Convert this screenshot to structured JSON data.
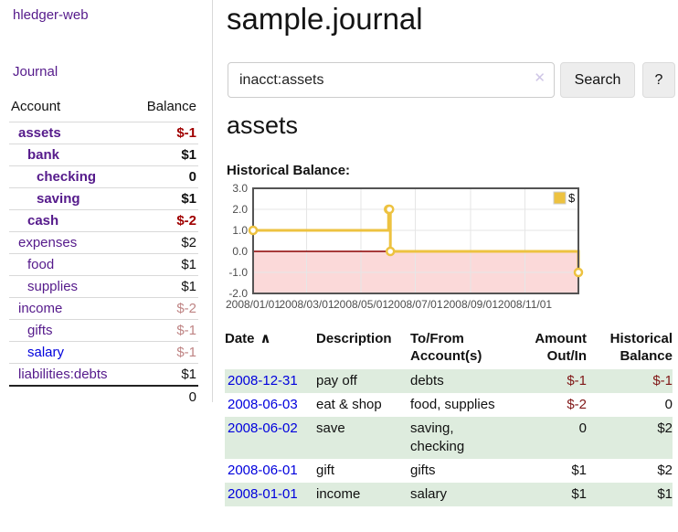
{
  "sidebar": {
    "brand": "hledger-web",
    "journal_label": "Journal",
    "accounts_table": {
      "headers": [
        "Account",
        "Balance"
      ],
      "rows": [
        {
          "account": "assets",
          "balance": "$-1"
        },
        {
          "account": "bank",
          "balance": "$1"
        },
        {
          "account": "checking",
          "balance": "0"
        },
        {
          "account": "saving",
          "balance": "$1"
        },
        {
          "account": "cash",
          "balance": "$-2"
        },
        {
          "account": "expenses",
          "balance": "$2"
        },
        {
          "account": "food",
          "balance": "$1"
        },
        {
          "account": "supplies",
          "balance": "$1"
        },
        {
          "account": "income",
          "balance": "$-2"
        },
        {
          "account": "gifts",
          "balance": "$-1"
        },
        {
          "account": "salary",
          "balance": "$-1"
        },
        {
          "account": "liabilities:debts",
          "balance": "$1"
        }
      ],
      "total": "0"
    }
  },
  "main": {
    "title": "sample.journal",
    "search": {
      "value": "inacct:assets",
      "clear_icon": "✕",
      "search_button": "Search",
      "help_button": "?"
    },
    "account_heading": "assets",
    "chart_heading": "Historical Balance:"
  },
  "register": {
    "headers": {
      "date": "Date",
      "sort_icon": "∧",
      "description": "Description",
      "accounts": "To/From Account(s)",
      "amount": "Amount Out/In",
      "balance": "Historical Balance"
    },
    "rows": [
      {
        "date": "2008-12-31",
        "description": "pay off",
        "accounts": "debts",
        "amount": "$-1",
        "balance": "$-1"
      },
      {
        "date": "2008-06-03",
        "description": "eat & shop",
        "accounts": "food, supplies",
        "amount": "$-2",
        "balance": "0"
      },
      {
        "date": "2008-06-02",
        "description": "save",
        "accounts": "saving, checking",
        "amount": "0",
        "balance": "$2"
      },
      {
        "date": "2008-06-01",
        "description": "gift",
        "accounts": "gifts",
        "amount": "$1",
        "balance": "$2"
      },
      {
        "date": "2008-01-01",
        "description": "income",
        "accounts": "salary",
        "amount": "$1",
        "balance": "$1"
      }
    ]
  },
  "chart_data": {
    "type": "line",
    "title": "Historical Balance:",
    "series": [
      {
        "name": "$",
        "color": "#edc240",
        "style": "steps",
        "points": [
          [
            "2008-01-01",
            1
          ],
          [
            "2008-06-01",
            2
          ],
          [
            "2008-06-02",
            2
          ],
          [
            "2008-06-03",
            0
          ],
          [
            "2008-12-31",
            -1
          ]
        ]
      }
    ],
    "y_ticks": [
      3.0,
      2.0,
      1.0,
      0.0,
      -1.0,
      -2.0
    ],
    "x_ticks": [
      "2008/01/01",
      "2008/03/01",
      "2008/05/01",
      "2008/07/01",
      "2008/09/01",
      "2008/11/01"
    ],
    "ylim": [
      -2,
      3
    ],
    "grid": true,
    "legend_position": "top-right",
    "zero_line_color": "#8b0000",
    "negative_region_color": "#fbd9d9",
    "border_color": "#545454",
    "gridline_color": "#e6e6e6",
    "tick_label_color": "#4d4d4d"
  },
  "colors": {
    "link_purple": "#551a8b",
    "link_blue": "#0000dd",
    "negative_strong": "#a00000",
    "negative_muted": "#bf8484",
    "negative_register": "#801717",
    "row_green": "#deecde",
    "accent_gold": "#edc240"
  }
}
